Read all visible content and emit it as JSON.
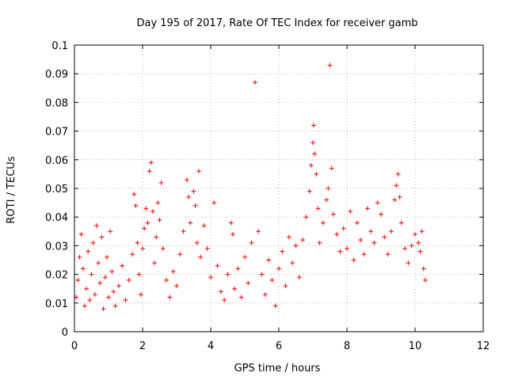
{
  "chart_data": {
    "type": "scatter",
    "title": "Day 195 of 2017, Rate Of TEC Index for receiver gamb",
    "xlabel": "GPS time / hours",
    "ylabel": "ROTI / TECUs",
    "xlim": [
      0,
      12
    ],
    "ylim": [
      0,
      0.1
    ],
    "xticks": [
      "0",
      "2",
      "4",
      "6",
      "8",
      "10",
      "12"
    ],
    "yticks": [
      "0",
      "0.01",
      "0.02",
      "0.03",
      "0.04",
      "0.05",
      "0.06",
      "0.07",
      "0.08",
      "0.09",
      "0.1"
    ],
    "grid": true,
    "marker": "+",
    "color": "#ff0000",
    "series": [
      {
        "name": "ROTI",
        "points": [
          [
            0.05,
            0.012
          ],
          [
            0.1,
            0.018
          ],
          [
            0.15,
            0.026
          ],
          [
            0.2,
            0.034
          ],
          [
            0.25,
            0.022
          ],
          [
            0.3,
            0.009
          ],
          [
            0.35,
            0.015
          ],
          [
            0.4,
            0.028
          ],
          [
            0.45,
            0.011
          ],
          [
            0.5,
            0.02
          ],
          [
            0.55,
            0.031
          ],
          [
            0.6,
            0.013
          ],
          [
            0.65,
            0.037
          ],
          [
            0.7,
            0.024
          ],
          [
            0.75,
            0.017
          ],
          [
            0.8,
            0.033
          ],
          [
            0.85,
            0.008
          ],
          [
            0.9,
            0.019
          ],
          [
            0.95,
            0.026
          ],
          [
            1.0,
            0.012
          ],
          [
            1.05,
            0.035
          ],
          [
            1.1,
            0.021
          ],
          [
            1.15,
            0.014
          ],
          [
            1.2,
            0.009
          ],
          [
            1.3,
            0.016
          ],
          [
            1.4,
            0.023
          ],
          [
            1.5,
            0.011
          ],
          [
            1.6,
            0.018
          ],
          [
            1.7,
            0.027
          ],
          [
            1.75,
            0.048
          ],
          [
            1.8,
            0.044
          ],
          [
            1.85,
            0.031
          ],
          [
            1.9,
            0.02
          ],
          [
            1.95,
            0.013
          ],
          [
            2.0,
            0.029
          ],
          [
            2.05,
            0.036
          ],
          [
            2.1,
            0.043
          ],
          [
            2.15,
            0.038
          ],
          [
            2.2,
            0.056
          ],
          [
            2.25,
            0.059
          ],
          [
            2.3,
            0.042
          ],
          [
            2.35,
            0.024
          ],
          [
            2.4,
            0.033
          ],
          [
            2.45,
            0.045
          ],
          [
            2.5,
            0.039
          ],
          [
            2.55,
            0.052
          ],
          [
            2.6,
            0.029
          ],
          [
            2.7,
            0.018
          ],
          [
            2.8,
            0.012
          ],
          [
            2.9,
            0.021
          ],
          [
            3.0,
            0.016
          ],
          [
            3.1,
            0.027
          ],
          [
            3.2,
            0.035
          ],
          [
            3.3,
            0.053
          ],
          [
            3.35,
            0.047
          ],
          [
            3.4,
            0.038
          ],
          [
            3.5,
            0.049
          ],
          [
            3.55,
            0.044
          ],
          [
            3.6,
            0.031
          ],
          [
            3.65,
            0.056
          ],
          [
            3.7,
            0.026
          ],
          [
            3.8,
            0.037
          ],
          [
            3.9,
            0.029
          ],
          [
            4.0,
            0.019
          ],
          [
            4.1,
            0.045
          ],
          [
            4.2,
            0.023
          ],
          [
            4.3,
            0.014
          ],
          [
            4.4,
            0.011
          ],
          [
            4.5,
            0.02
          ],
          [
            4.6,
            0.038
          ],
          [
            4.65,
            0.034
          ],
          [
            4.7,
            0.015
          ],
          [
            4.8,
            0.022
          ],
          [
            4.9,
            0.012
          ],
          [
            5.0,
            0.026
          ],
          [
            5.1,
            0.017
          ],
          [
            5.2,
            0.031
          ],
          [
            5.3,
            0.087
          ],
          [
            5.4,
            0.035
          ],
          [
            5.5,
            0.02
          ],
          [
            5.6,
            0.013
          ],
          [
            5.7,
            0.025
          ],
          [
            5.8,
            0.018
          ],
          [
            5.9,
            0.009
          ],
          [
            6.0,
            0.022
          ],
          [
            6.1,
            0.028
          ],
          [
            6.2,
            0.016
          ],
          [
            6.3,
            0.033
          ],
          [
            6.4,
            0.024
          ],
          [
            6.5,
            0.03
          ],
          [
            6.6,
            0.019
          ],
          [
            6.7,
            0.032
          ],
          [
            6.8,
            0.04
          ],
          [
            6.9,
            0.049
          ],
          [
            6.95,
            0.058
          ],
          [
            7.0,
            0.066
          ],
          [
            7.02,
            0.072
          ],
          [
            7.05,
            0.062
          ],
          [
            7.1,
            0.055
          ],
          [
            7.15,
            0.043
          ],
          [
            7.2,
            0.031
          ],
          [
            7.3,
            0.038
          ],
          [
            7.4,
            0.046
          ],
          [
            7.45,
            0.05
          ],
          [
            7.5,
            0.093
          ],
          [
            7.55,
            0.057
          ],
          [
            7.6,
            0.041
          ],
          [
            7.7,
            0.034
          ],
          [
            7.8,
            0.028
          ],
          [
            7.9,
            0.036
          ],
          [
            8.0,
            0.029
          ],
          [
            8.1,
            0.042
          ],
          [
            8.2,
            0.025
          ],
          [
            8.3,
            0.038
          ],
          [
            8.4,
            0.032
          ],
          [
            8.5,
            0.027
          ],
          [
            8.6,
            0.043
          ],
          [
            8.7,
            0.035
          ],
          [
            8.8,
            0.031
          ],
          [
            8.9,
            0.045
          ],
          [
            9.0,
            0.041
          ],
          [
            9.1,
            0.033
          ],
          [
            9.2,
            0.027
          ],
          [
            9.3,
            0.035
          ],
          [
            9.4,
            0.046
          ],
          [
            9.45,
            0.051
          ],
          [
            9.5,
            0.055
          ],
          [
            9.55,
            0.047
          ],
          [
            9.6,
            0.038
          ],
          [
            9.7,
            0.029
          ],
          [
            9.8,
            0.024
          ],
          [
            9.9,
            0.03
          ],
          [
            10.0,
            0.034
          ],
          [
            10.1,
            0.031
          ],
          [
            10.15,
            0.028
          ],
          [
            10.2,
            0.035
          ],
          [
            10.25,
            0.022
          ],
          [
            10.3,
            0.018
          ]
        ]
      }
    ]
  }
}
